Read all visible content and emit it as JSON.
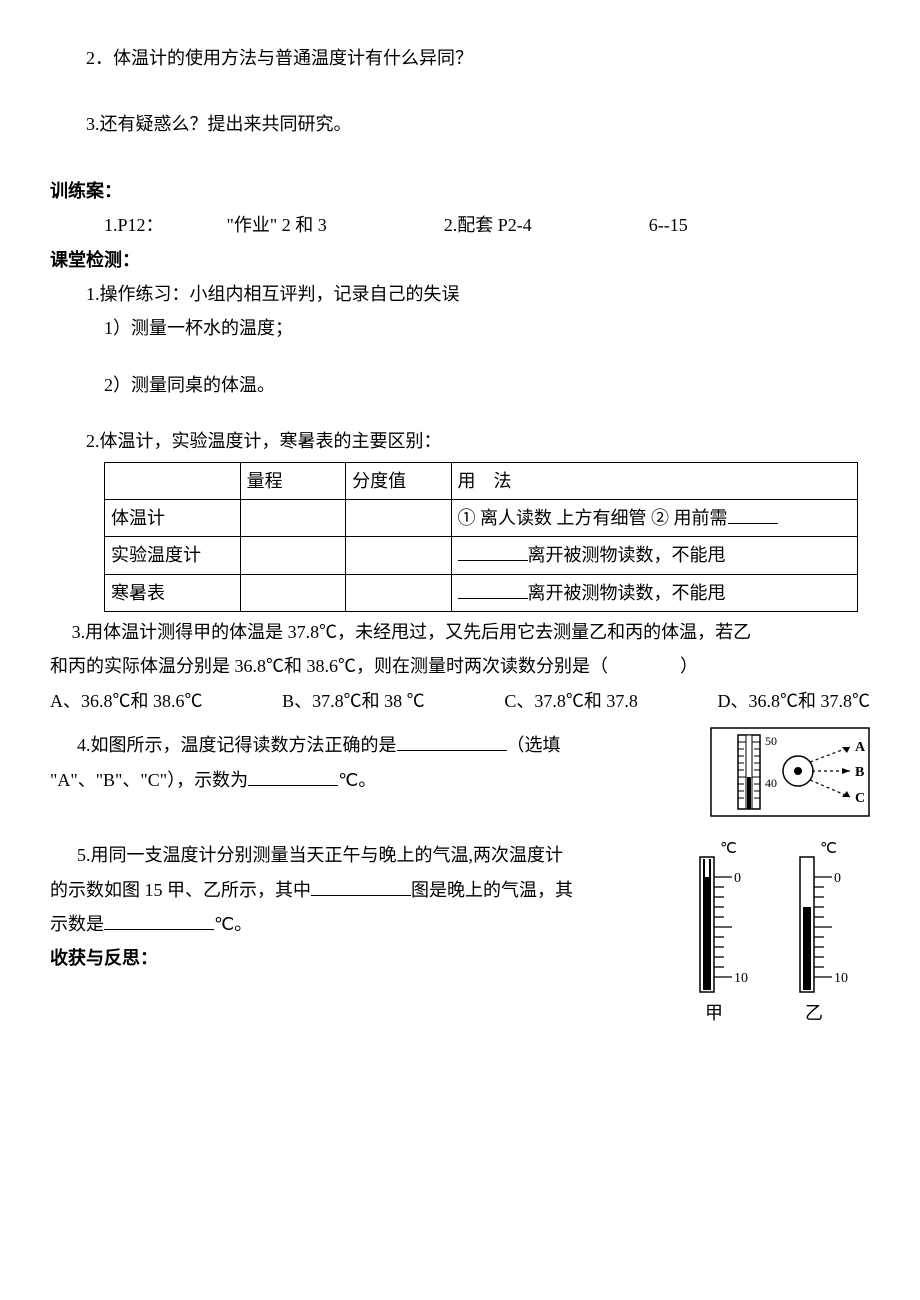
{
  "q2": "2．体温计的使用方法与普通温度计有什么异同？",
  "q3": "3.还有疑惑么？提出来共同研究。",
  "training_title": "训练案：",
  "training_line": {
    "a": "1.P12：",
    "b": "\"作业\" 2 和 3",
    "c": "2.配套 P2-4",
    "d": "6--15"
  },
  "class_test_title": "课堂检测：",
  "ct1": "1.操作练习：小组内相互评判，记录自己的失误",
  "ct1_a": "1）测量一杯水的温度；",
  "ct1_b": "2）测量同桌的体温。",
  "ct2": "2.体温计，实验温度计，寒暑表的主要区别：",
  "table": {
    "headers": [
      "",
      "量程",
      "分度值",
      "用　法"
    ],
    "rows": [
      {
        "c0": "体温计",
        "c3_a": "① ",
        "c3_b": "离人读数 上方有细管 ② 用前需",
        "blank_w": 50
      },
      {
        "c0": "实验温度计",
        "blank_w": 70,
        "c3": "离开被测物读数，不能甩"
      },
      {
        "c0": "寒暑表",
        "blank_w": 70,
        "c3": "离开被测物读数，不能甩"
      }
    ]
  },
  "ct3": {
    "line1": "3.用体温计测得甲的体温是 37.8℃，未经甩过，又先后用它去测量乙和丙的体温，若乙",
    "line2": "和丙的实际体温分别是 36.8℃和 38.6℃，则在测量时两次读数分别是（　　　　）",
    "opts": {
      "a": "A、36.8℃和 38.6℃",
      "b": "B、37.8℃和 38 ℃",
      "c": "C、37.8℃和 37.8",
      "d": "D、36.8℃和 37.8℃"
    }
  },
  "ct4": {
    "a": "4.如图所示，温度记得读数方法正确的是",
    "b": "（选填",
    "c": "\"A\"、\"B\"、\"C\"），示数为",
    "d": "℃。",
    "blank1_w": 110,
    "blank2_w": 90
  },
  "ct5": {
    "line1a": "5.用同一支温度计分别测量当天正午与晚上的气温,两次温度计",
    "line2a": "的示数如图 15 甲、乙所示，其中",
    "line2b": "图是晚上的气温，其",
    "line3a": "示数是",
    "line3b": "℃。",
    "blank1_w": 100,
    "blank2_w": 110
  },
  "reflect": "收获与反思：",
  "fig4": {
    "top_label": "50",
    "bottom_label": "40",
    "letters": [
      "A",
      "B",
      "C"
    ]
  },
  "fig5": {
    "unit": "℃",
    "top_tick": "0",
    "bottom_tick": "10",
    "labels": [
      "甲",
      "乙"
    ]
  }
}
